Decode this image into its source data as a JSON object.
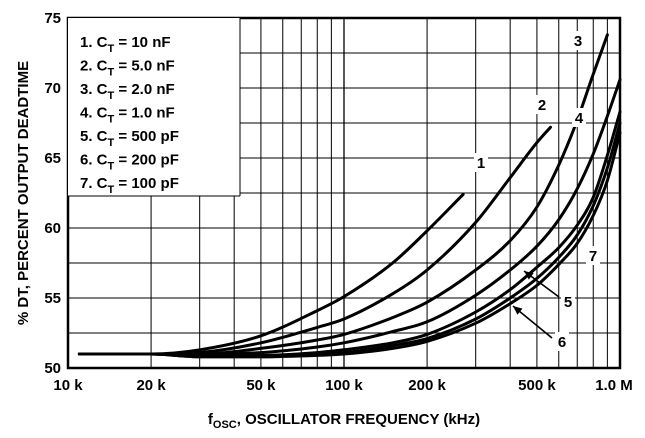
{
  "chart_data": {
    "type": "line",
    "title": "",
    "xlabel": {
      "main": "f",
      "sub": "OSC",
      "rest": ", OSCILLATOR FREQUENCY (kHz)"
    },
    "ylabel": "% DT, PERCENT OUTPUT DEADTIME",
    "x_scale": "log",
    "xlim_khz": [
      10,
      1000
    ],
    "ylim": [
      50,
      75
    ],
    "x_ticks": [
      {
        "value": 10,
        "label": "10 k"
      },
      {
        "value": 20,
        "label": "20 k"
      },
      {
        "value": 50,
        "label": "50 k"
      },
      {
        "value": 100,
        "label": "100 k"
      },
      {
        "value": 200,
        "label": "200 k"
      },
      {
        "value": 500,
        "label": "500 k"
      },
      {
        "value": 1000,
        "label": "1.0 M"
      }
    ],
    "y_ticks": [
      {
        "value": 50,
        "label": "50"
      },
      {
        "value": 55,
        "label": "55"
      },
      {
        "value": 60,
        "label": "60"
      },
      {
        "value": 65,
        "label": "65"
      },
      {
        "value": 70,
        "label": "70"
      },
      {
        "value": 75,
        "label": "75"
      }
    ],
    "grid": true,
    "legend_position": "top-left",
    "legend": [
      {
        "prefix": "1.  C",
        "sub": "T",
        "value": " = 10 nF"
      },
      {
        "prefix": "2.  C",
        "sub": "T",
        "value": " = 5.0 nF"
      },
      {
        "prefix": "3.  C",
        "sub": "T",
        "value": " = 2.0 nF"
      },
      {
        "prefix": "4.  C",
        "sub": "T",
        "value": " = 1.0 nF"
      },
      {
        "prefix": "5.  C",
        "sub": "T",
        "value": " = 500 pF"
      },
      {
        "prefix": "6.  C",
        "sub": "T",
        "value": " = 200 pF"
      },
      {
        "prefix": "7.  C",
        "sub": "T",
        "value": " = 100 pF"
      }
    ],
    "series": [
      {
        "label": "1",
        "points": [
          [
            11,
            51
          ],
          [
            20,
            51
          ],
          [
            30,
            51.3
          ],
          [
            50,
            52.3
          ],
          [
            80,
            54.1
          ],
          [
            100,
            55.1
          ],
          [
            150,
            57.5
          ],
          [
            200,
            59.8
          ],
          [
            270,
            62.4
          ]
        ]
      },
      {
        "label": "2",
        "points": [
          [
            11,
            51
          ],
          [
            20,
            51
          ],
          [
            30,
            51.1
          ],
          [
            50,
            51.8
          ],
          [
            80,
            52.9
          ],
          [
            100,
            53.5
          ],
          [
            150,
            55.3
          ],
          [
            200,
            57.0
          ],
          [
            300,
            60.4
          ],
          [
            400,
            63.6
          ],
          [
            500,
            66.1
          ],
          [
            560,
            67.2
          ]
        ]
      },
      {
        "label": "3",
        "points": [
          [
            11,
            51
          ],
          [
            20,
            51
          ],
          [
            30,
            51
          ],
          [
            50,
            51.4
          ],
          [
            80,
            52.0
          ],
          [
            100,
            52.4
          ],
          [
            150,
            53.6
          ],
          [
            200,
            54.7
          ],
          [
            300,
            57.0
          ],
          [
            400,
            59.1
          ],
          [
            500,
            61.5
          ],
          [
            600,
            64.5
          ],
          [
            700,
            67.7
          ],
          [
            800,
            71.0
          ],
          [
            900,
            73.8
          ]
        ]
      },
      {
        "label": "4",
        "points": [
          [
            11,
            51
          ],
          [
            20,
            51
          ],
          [
            30,
            51
          ],
          [
            50,
            51.1
          ],
          [
            80,
            51.5
          ],
          [
            100,
            51.8
          ],
          [
            150,
            52.6
          ],
          [
            200,
            53.3
          ],
          [
            300,
            55.2
          ],
          [
            400,
            57.0
          ],
          [
            500,
            58.7
          ],
          [
            600,
            60.6
          ],
          [
            700,
            62.8
          ],
          [
            800,
            65.3
          ],
          [
            900,
            68.0
          ],
          [
            1000,
            70.6
          ]
        ]
      },
      {
        "label": "5",
        "points": [
          [
            11,
            51
          ],
          [
            20,
            51
          ],
          [
            30,
            50.9
          ],
          [
            50,
            50.9
          ],
          [
            80,
            51.1
          ],
          [
            100,
            51.3
          ],
          [
            150,
            51.8
          ],
          [
            200,
            52.4
          ],
          [
            300,
            54.0
          ],
          [
            400,
            55.6
          ],
          [
            500,
            57.2
          ],
          [
            600,
            58.6
          ],
          [
            700,
            60.2
          ],
          [
            800,
            62.2
          ],
          [
            900,
            65.2
          ],
          [
            1000,
            68.3
          ]
        ]
      },
      {
        "label": "6",
        "points": [
          [
            11,
            51
          ],
          [
            20,
            51
          ],
          [
            30,
            50.8
          ],
          [
            50,
            50.8
          ],
          [
            80,
            50.9
          ],
          [
            100,
            51.0
          ],
          [
            150,
            51.4
          ],
          [
            200,
            51.9
          ],
          [
            300,
            53.2
          ],
          [
            400,
            54.6
          ],
          [
            500,
            55.9
          ],
          [
            600,
            57.4
          ],
          [
            700,
            58.9
          ],
          [
            800,
            60.9
          ],
          [
            900,
            63.4
          ],
          [
            1000,
            66.8
          ]
        ]
      },
      {
        "label": "7",
        "points": [
          [
            11,
            51
          ],
          [
            20,
            51
          ],
          [
            30,
            50.8
          ],
          [
            50,
            50.8
          ],
          [
            80,
            51.0
          ],
          [
            100,
            51.1
          ],
          [
            150,
            51.6
          ],
          [
            200,
            52.1
          ],
          [
            300,
            53.5
          ],
          [
            400,
            55.0
          ],
          [
            500,
            56.4
          ],
          [
            600,
            57.9
          ],
          [
            700,
            59.5
          ],
          [
            800,
            61.6
          ],
          [
            900,
            64.3
          ],
          [
            1000,
            67.5
          ]
        ]
      }
    ],
    "annotations": [
      "1",
      "2",
      "3",
      "4",
      "5",
      "6",
      "7"
    ]
  }
}
